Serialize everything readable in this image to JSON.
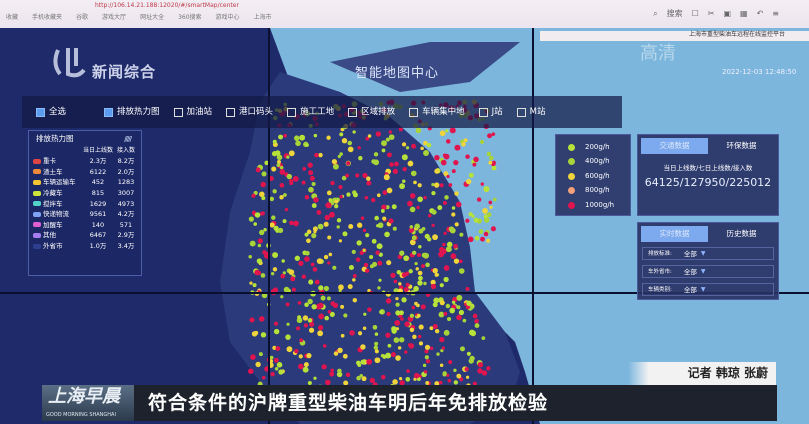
{
  "browser": {
    "url": "http://106.14.21.188:12020/#/smartMap/center",
    "bookmarks": [
      "收藏",
      "手机收藏夹",
      "谷歌",
      "游戏大厅",
      "网址大全",
      "360搜索",
      "游戏中心",
      "上海市"
    ],
    "search_placeholder": "搜索"
  },
  "platform_title": "上海市重型柴油车远程在线监控平台",
  "datetime": "2022-12-03 12:48:50",
  "map_title": "智能地图中心",
  "filters": [
    {
      "label": "全选",
      "checked": true
    },
    {
      "label": "排放热力图",
      "checked": true
    },
    {
      "label": "加油站",
      "checked": false
    },
    {
      "label": "港口码头",
      "checked": false
    },
    {
      "label": "施工工地",
      "checked": false
    },
    {
      "label": "区域排放",
      "checked": false
    },
    {
      "label": "车辆集中地",
      "checked": false
    },
    {
      "label": "J站",
      "checked": false
    },
    {
      "label": "M站",
      "checked": false
    }
  ],
  "heat_panel": {
    "title": "排放热力图",
    "col_online": "当日上线数",
    "col_access": "接入数",
    "rows": [
      {
        "name": "重卡",
        "online": "2.3万",
        "access": "8.2万",
        "color": "#e04545"
      },
      {
        "name": "渣土车",
        "online": "6122",
        "access": "2.0万",
        "color": "#f08a3a"
      },
      {
        "name": "车辆运输车",
        "online": "452",
        "access": "1283",
        "color": "#f4c531"
      },
      {
        "name": "冷藏车",
        "online": "815",
        "access": "3007",
        "color": "#cde43a"
      },
      {
        "name": "搅拌车",
        "online": "1629",
        "access": "4973",
        "color": "#54d3c9"
      },
      {
        "name": "快递物流",
        "online": "9561",
        "access": "4.2万",
        "color": "#7fa2f2"
      },
      {
        "name": "加醒车",
        "online": "140",
        "access": "571",
        "color": "#e05ed0"
      },
      {
        "name": "其他",
        "online": "6467",
        "access": "2.9万",
        "color": "#a77cf0"
      },
      {
        "name": "外省市",
        "online": "1.0万",
        "access": "3.4万",
        "color": "#2f3f8f"
      }
    ]
  },
  "legend": [
    {
      "label": "200g/h",
      "color": "#b7e23a"
    },
    {
      "label": "400g/h",
      "color": "#a8d43a"
    },
    {
      "label": "600g/h",
      "color": "#f0d43c"
    },
    {
      "label": "800g/h",
      "color": "#f3a07a"
    },
    {
      "label": "1000g/h",
      "color": "#e0144f"
    }
  ],
  "traffic_panel": {
    "tabs": [
      "交通数据",
      "环保数据"
    ],
    "active": 0,
    "label": "当日上线数/七日上线数/接入数",
    "value": "64125/127950/225012"
  },
  "realtime_panel": {
    "tabs": [
      "实时数据",
      "历史数据"
    ],
    "active": 0,
    "selects": [
      {
        "label": "排放标准:",
        "value": "全部"
      },
      {
        "label": "车外省市:",
        "value": "全部"
      },
      {
        "label": "车辆类别:",
        "value": "全部"
      }
    ]
  },
  "broadcast": {
    "channel_logo": "新闻综合",
    "watermark": "高清",
    "reporter": "记者 韩琼 张蔚",
    "show_name": "上海早晨",
    "show_name_en": "GOOD MORNING SHANGHAI",
    "headline": "符合条件的沪牌重型柴油车明后年免排放检验"
  }
}
